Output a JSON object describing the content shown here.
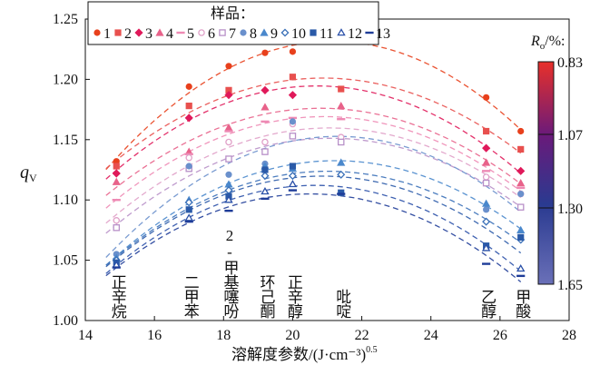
{
  "chart_data": {
    "type": "scatter",
    "xlabel": "溶解度参数/(J·cm⁻³)",
    "xlabel_exp": "0.5",
    "ylabel": "q",
    "ylabel_sub": "V",
    "xlim": [
      14,
      28
    ],
    "ylim": [
      1.0,
      1.25
    ],
    "xticks": [
      "14",
      "16",
      "18",
      "20",
      "22",
      "24",
      "26",
      "28"
    ],
    "yticks": [
      "1.00",
      "1.05",
      "1.10",
      "1.15",
      "1.20",
      "1.25"
    ],
    "legend_title": "样品：",
    "legend_placement": "top",
    "fit": "quadratic dashed",
    "solvents": [
      {
        "name": "正辛烷",
        "x": 14.9
      },
      {
        "name": "二甲苯",
        "x": 17.0
      },
      {
        "name": "2-甲基噻吩",
        "x": 18.15
      },
      {
        "name": "环己酮",
        "x": 19.2
      },
      {
        "name": "正辛醇",
        "x": 20.0
      },
      {
        "name": "吡啶",
        "x": 21.4
      },
      {
        "name": "乙醇",
        "x": 25.6
      },
      {
        "name": "甲酸",
        "x": 26.6
      }
    ],
    "series": [
      {
        "name": "1",
        "marker": "circle",
        "color": "#e8401c",
        "values": [
          1.132,
          1.194,
          1.211,
          1.222,
          1.223,
          null,
          1.185,
          1.157
        ]
      },
      {
        "name": "2",
        "marker": "square",
        "color": "#e8504e",
        "values": [
          1.128,
          1.178,
          1.191,
          null,
          1.202,
          1.192,
          1.157,
          1.142
        ]
      },
      {
        "name": "3",
        "marker": "diamond",
        "color": "#e0195a",
        "values": [
          1.122,
          1.168,
          1.187,
          1.191,
          1.187,
          null,
          1.143,
          1.124
        ]
      },
      {
        "name": "4",
        "marker": "triangle",
        "color": "#e8628a",
        "values": [
          1.115,
          1.14,
          1.16,
          1.177,
          null,
          1.178,
          1.131,
          1.114
        ]
      },
      {
        "name": "5",
        "marker": "dash",
        "color": "#ee8ab4",
        "values": [
          1.1,
          1.138,
          1.157,
          1.165,
          1.168,
          1.167,
          1.124,
          1.11
        ]
      },
      {
        "name": "6",
        "marker": "open-circle",
        "color": "#e0a0c8",
        "values": [
          1.083,
          1.135,
          1.148,
          1.148,
          1.163,
          1.152,
          1.119,
          1.105
        ]
      },
      {
        "name": "7",
        "marker": "open-square",
        "color": "#b890c8",
        "values": [
          1.077,
          1.126,
          1.134,
          1.14,
          1.153,
          1.148,
          1.114,
          1.094
        ]
      },
      {
        "name": "8",
        "marker": "circle",
        "color": "#6a90cc",
        "values": [
          1.055,
          1.128,
          1.121,
          1.13,
          1.165,
          null,
          1.092,
          1.105
        ]
      },
      {
        "name": "9",
        "marker": "triangle",
        "color": "#4a88cc",
        "values": [
          1.052,
          1.1,
          1.113,
          1.128,
          1.126,
          1.131,
          1.097,
          1.075
        ]
      },
      {
        "name": "10",
        "marker": "open-diamond",
        "color": "#3a70b8",
        "values": [
          1.05,
          1.098,
          1.108,
          1.12,
          1.12,
          1.121,
          1.082,
          1.067
        ]
      },
      {
        "name": "11",
        "marker": "square",
        "color": "#2a5aa8",
        "values": [
          1.048,
          1.092,
          1.103,
          1.125,
          1.128,
          1.106,
          1.062,
          1.069
        ]
      },
      {
        "name": "12",
        "marker": "open-triangle",
        "color": "#2a50a8",
        "values": [
          1.046,
          1.085,
          1.1,
          1.107,
          1.113,
          null,
          1.06,
          1.043
        ]
      },
      {
        "name": "13",
        "marker": "dash",
        "color": "#1e3c98",
        "values": [
          1.044,
          1.082,
          1.091,
          1.101,
          1.108,
          1.105,
          1.047,
          1.037
        ]
      }
    ],
    "colorbar": {
      "title": "R",
      "title_sub": "o",
      "title_suffix": "/%:",
      "ticks": [
        "0.83",
        "1.07",
        "1.30",
        "1.65"
      ],
      "stops": [
        "#e8302a",
        "#6a1a7a",
        "#2a3a90",
        "#6a70b8"
      ]
    }
  }
}
